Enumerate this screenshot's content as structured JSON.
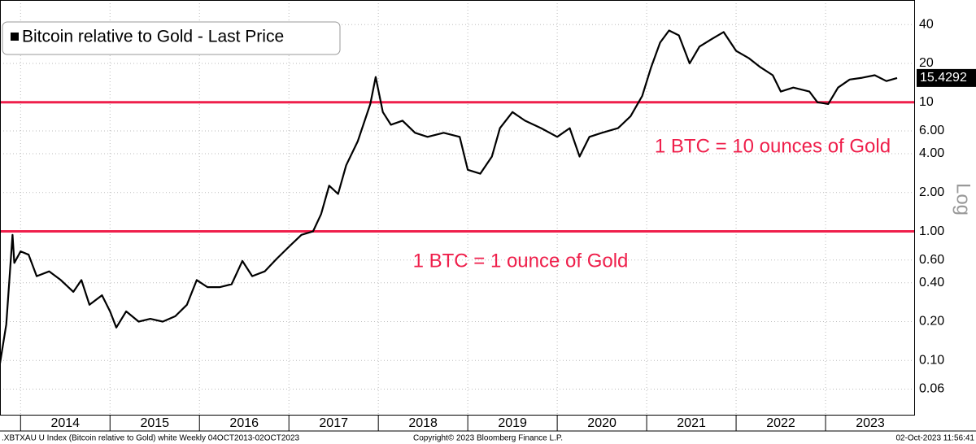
{
  "chart_data": {
    "type": "line",
    "legend": "Bitcoin relative to Gold - Last Price",
    "axis_label": "Log",
    "log_scale": true,
    "grid": true,
    "xlim": [
      2013.77,
      2024.0
    ],
    "ylim": [
      0.038,
      62
    ],
    "xgrid": [
      2014,
      2015,
      2016,
      2017,
      2018,
      2019,
      2020,
      2021,
      2022,
      2023
    ],
    "xticks": [
      {
        "value": 2014.5,
        "label": "2014"
      },
      {
        "value": 2015.5,
        "label": "2015"
      },
      {
        "value": 2016.5,
        "label": "2016"
      },
      {
        "value": 2017.5,
        "label": "2017"
      },
      {
        "value": 2018.5,
        "label": "2018"
      },
      {
        "value": 2019.5,
        "label": "2019"
      },
      {
        "value": 2020.5,
        "label": "2020"
      },
      {
        "value": 2021.5,
        "label": "2021"
      },
      {
        "value": 2022.5,
        "label": "2022"
      },
      {
        "value": 2023.5,
        "label": "2023"
      }
    ],
    "yticks": [
      0.06,
      {
        "value": 0.1,
        "label": "0.10"
      },
      {
        "value": 0.2,
        "label": "0.20"
      },
      {
        "value": 0.4,
        "label": "0.40"
      },
      {
        "value": 0.6,
        "label": "0.60"
      },
      {
        "value": 1,
        "label": "1.00"
      },
      {
        "value": 2,
        "label": "2.00"
      },
      {
        "value": 4,
        "label": "4.00"
      },
      {
        "value": 6,
        "label": "6.00"
      },
      10,
      20,
      40
    ],
    "hlines": [
      {
        "value": 10,
        "label": "1 BTC = 10 ounces of Gold",
        "color": "#ef1f4b"
      },
      {
        "value": 1,
        "label": "1 BTC = 1 ounce of Gold",
        "color": "#ef1f4b"
      }
    ],
    "series": [
      {
        "name": "Bitcoin relative to Gold",
        "color": "#000000",
        "x": [
          2013.77,
          2013.84,
          2013.91,
          2013.93,
          2014.0,
          2014.09,
          2014.18,
          2014.32,
          2014.45,
          2014.59,
          2014.68,
          2014.77,
          2014.91,
          2015.0,
          2015.07,
          2015.18,
          2015.32,
          2015.45,
          2015.59,
          2015.73,
          2015.86,
          2015.97,
          2016.09,
          2016.23,
          2016.36,
          2016.48,
          2016.59,
          2016.73,
          2016.86,
          2017.0,
          2017.14,
          2017.27,
          2017.36,
          2017.45,
          2017.55,
          2017.64,
          2017.77,
          2017.91,
          2017.97,
          2018.05,
          2018.14,
          2018.27,
          2018.41,
          2018.55,
          2018.73,
          2018.91,
          2019.0,
          2019.14,
          2019.27,
          2019.36,
          2019.5,
          2019.64,
          2019.82,
          2020.0,
          2020.14,
          2020.25,
          2020.36,
          2020.5,
          2020.68,
          2020.82,
          2020.95,
          2021.05,
          2021.15,
          2021.25,
          2021.36,
          2021.48,
          2021.59,
          2021.73,
          2021.86,
          2022.0,
          2022.14,
          2022.27,
          2022.41,
          2022.5,
          2022.64,
          2022.82,
          2022.91,
          2023.03,
          2023.14,
          2023.27,
          2023.41,
          2023.55,
          2023.68,
          2023.8
        ],
        "values": [
          0.095,
          0.19,
          0.94,
          0.57,
          0.7,
          0.66,
          0.45,
          0.49,
          0.42,
          0.34,
          0.42,
          0.27,
          0.32,
          0.24,
          0.18,
          0.24,
          0.2,
          0.21,
          0.2,
          0.22,
          0.27,
          0.42,
          0.37,
          0.37,
          0.39,
          0.59,
          0.45,
          0.49,
          0.61,
          0.76,
          0.94,
          1.0,
          1.36,
          2.26,
          1.95,
          3.25,
          5.0,
          9.7,
          15.7,
          8.4,
          6.7,
          7.2,
          5.8,
          5.4,
          5.8,
          5.4,
          3.0,
          2.8,
          3.8,
          6.3,
          8.4,
          7.2,
          6.3,
          5.4,
          6.3,
          3.8,
          5.4,
          5.8,
          6.3,
          7.8,
          11.2,
          18.7,
          29,
          36,
          33,
          20,
          27,
          31,
          35,
          25,
          22,
          18.7,
          16.2,
          12.1,
          13,
          12.1,
          10,
          9.7,
          13,
          15,
          15.5,
          16.2,
          14.6,
          15.4292
        ]
      }
    ],
    "footer_left": ".XBTXAU U Index (Bitcoin relative to Gold) white  Weekly 04OCT2013-02OCT2023",
    "footer_center": "Copyright© 2023 Bloomberg Finance L.P.",
    "footer_right": "02-Oct-2023 11:56:41"
  }
}
